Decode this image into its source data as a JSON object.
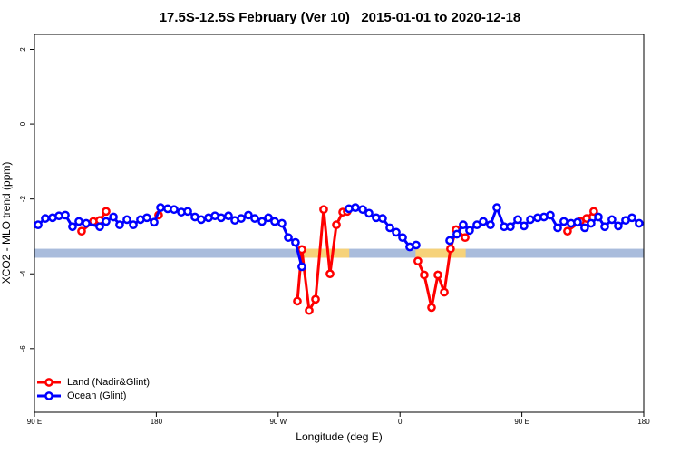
{
  "chart_data": {
    "type": "line",
    "title": "17.5S-12.5S February (Ver 10)   2015-01-01 to 2020-12-18",
    "x_label": "Longitude (deg E)",
    "y_label": "XCO2 - MLO trend (ppm)",
    "xlim": [
      90,
      540
    ],
    "ylim": [
      -7.7,
      2.4
    ],
    "xticks": [
      {
        "value": 90,
        "label": "90 E"
      },
      180,
      {
        "value": 270,
        "label": "90 W"
      },
      {
        "value": 360,
        "label": "0"
      },
      {
        "value": 450,
        "label": "90 E"
      },
      {
        "value": 540,
        "label": "180"
      }
    ],
    "yticks": [
      2,
      0,
      -2,
      -4,
      -6
    ],
    "legend": "bottom-left",
    "band": {
      "ymin": -3.57,
      "ymax": -3.33,
      "color": "#a9bcdc",
      "land_color": "#f6d27a",
      "land_ranges": [
        [
          287.5,
          322.5
        ],
        [
          371.5,
          408.5
        ]
      ]
    },
    "series": [
      {
        "name": "Land (Nadir&Glint)",
        "color": "#ff0000",
        "x": [
          124.8,
          133.5,
          138.2,
          142.9,
          null,
          181.7,
          null,
          284.2,
          287.5,
          292.9,
          297.6,
          303.6,
          308.3,
          313,
          317.7,
          321,
          null,
          373.2,
          377.9,
          383.3,
          388,
          392.7,
          397.3,
          401.4,
          408.1,
          null,
          483.7,
          493.1,
          497.8,
          503.1
        ],
        "values": [
          -2.86,
          -2.6,
          -2.57,
          -2.33,
          null,
          -2.43,
          null,
          -4.73,
          -3.35,
          -4.98,
          -4.68,
          -2.28,
          -4.0,
          -2.69,
          -2.35,
          -2.33,
          null,
          -3.66,
          -4.03,
          -4.9,
          -4.03,
          -4.49,
          -3.33,
          -2.82,
          -3.03,
          null,
          -2.86,
          -2.6,
          -2.52,
          -2.33
        ]
      },
      {
        "name": "Ocean (Glint)",
        "color": "#0000ff",
        "x": [
          92.7,
          98,
          103.4,
          108.1,
          112.8,
          118.1,
          122.8,
          128.2,
          138.2,
          142.9,
          148.3,
          152.9,
          158.3,
          163,
          168.3,
          173,
          178.4,
          183.1,
          188.4,
          193.1,
          198.5,
          203.2,
          208.5,
          213.2,
          218.6,
          223.3,
          227.9,
          233.3,
          238,
          242.7,
          248,
          252.7,
          258.1,
          262.8,
          267.4,
          272.8,
          277.5,
          282.8,
          287.5,
          null,
          322.3,
          327,
          332.4,
          337.1,
          342.4,
          347.1,
          352.5,
          357.2,
          361.9,
          367.2,
          371.9,
          null,
          396.7,
          402,
          406.7,
          411.4,
          416.8,
          421.5,
          426.8,
          431.5,
          436.9,
          441.5,
          446.9,
          451.6,
          456.3,
          461.6,
          466.3,
          471,
          476.4,
          481,
          486.4,
          491.1,
          496.4,
          501.1,
          506.5,
          511.2,
          516.5,
          521.2,
          526.6,
          531.3,
          536.6
        ],
        "values": [
          -2.69,
          -2.52,
          -2.5,
          -2.45,
          -2.43,
          -2.74,
          -2.6,
          -2.65,
          -2.74,
          -2.6,
          -2.48,
          -2.69,
          -2.55,
          -2.69,
          -2.55,
          -2.5,
          -2.62,
          -2.23,
          -2.26,
          -2.28,
          -2.35,
          -2.33,
          -2.48,
          -2.55,
          -2.5,
          -2.45,
          -2.5,
          -2.45,
          -2.57,
          -2.52,
          -2.43,
          -2.52,
          -2.6,
          -2.5,
          -2.6,
          -2.65,
          -3.03,
          -3.16,
          -3.81,
          null,
          -2.26,
          -2.23,
          -2.28,
          -2.38,
          -2.5,
          -2.52,
          -2.77,
          -2.89,
          -3.03,
          -3.28,
          -3.23,
          null,
          -3.11,
          -2.94,
          -2.69,
          -2.84,
          -2.69,
          -2.6,
          -2.69,
          -2.23,
          -2.74,
          -2.74,
          -2.55,
          -2.72,
          -2.55,
          -2.5,
          -2.48,
          -2.43,
          -2.77,
          -2.6,
          -2.65,
          -2.62,
          -2.77,
          -2.65,
          -2.48,
          -2.74,
          -2.55,
          -2.72,
          -2.57,
          -2.5,
          -2.65
        ]
      }
    ]
  }
}
